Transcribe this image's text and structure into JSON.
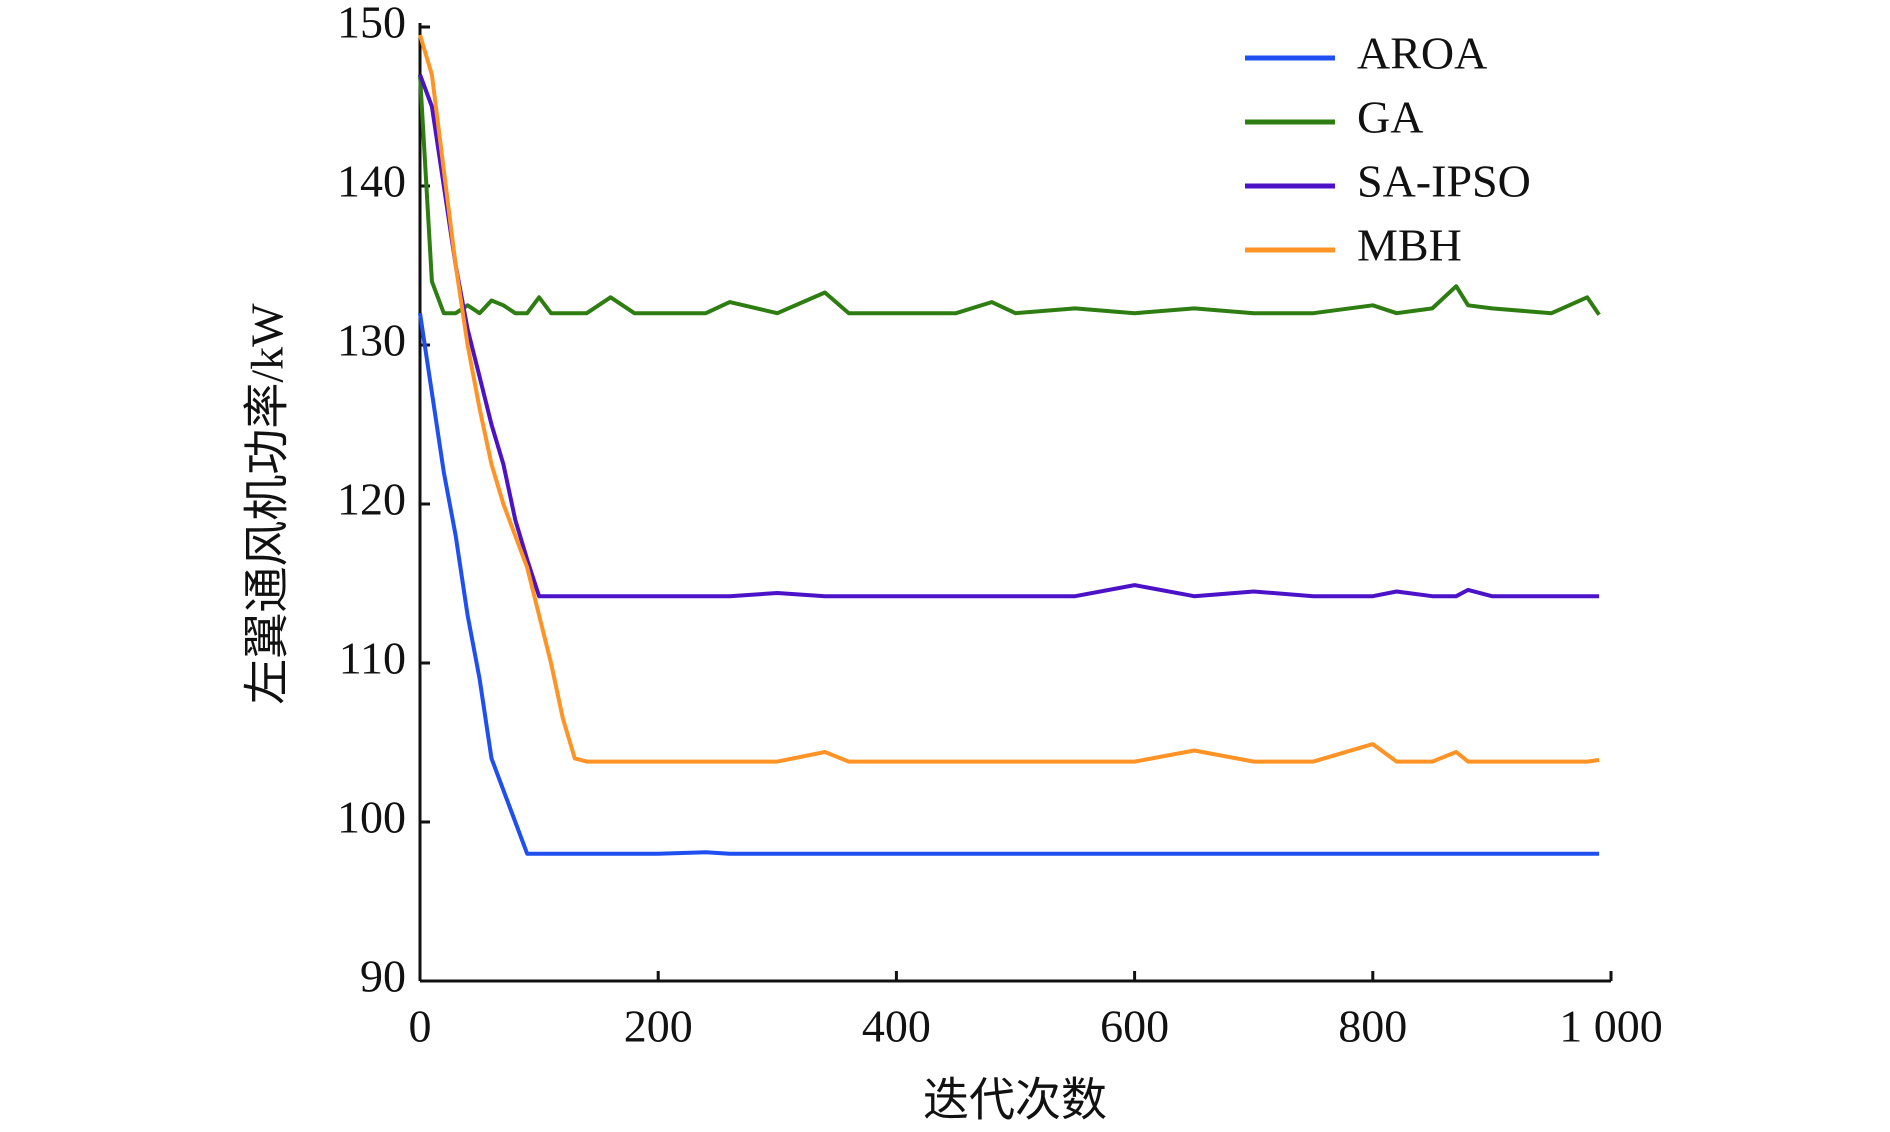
{
  "chart_data": {
    "type": "line",
    "xlabel": "迭代次数",
    "ylabel": "左翼通风机功率/kW",
    "x": [
      0,
      10,
      20,
      30,
      40,
      50,
      60,
      70,
      80,
      90,
      100,
      110,
      120,
      130,
      140,
      160,
      180,
      200,
      240,
      260,
      300,
      340,
      360,
      400,
      450,
      480,
      500,
      550,
      600,
      650,
      700,
      750,
      800,
      820,
      850,
      870,
      880,
      900,
      950,
      980,
      990
    ],
    "series": [
      {
        "name": "AROA",
        "color": "#1f4ff0",
        "values": [
          132,
          127,
          122,
          118,
          113,
          109,
          104,
          102,
          100,
          98,
          98,
          98,
          98,
          98,
          98,
          98,
          98,
          98,
          98.1,
          98,
          98,
          98,
          98,
          98,
          98,
          98,
          98,
          98,
          98,
          98,
          98,
          98,
          98,
          98,
          98,
          98,
          98,
          98,
          98,
          98,
          98
        ]
      },
      {
        "name": "GA",
        "color": "#2e7d12",
        "values": [
          147,
          134,
          132,
          132,
          132.5,
          132,
          132.8,
          132.5,
          132,
          132,
          133,
          132,
          132,
          132,
          132,
          133,
          132,
          132,
          132,
          132.7,
          132,
          133.3,
          132,
          132,
          132,
          132.7,
          132,
          132.3,
          132,
          132.3,
          132,
          132,
          132.5,
          132,
          132.3,
          133.7,
          132.5,
          132.3,
          132,
          133,
          131.9
        ]
      },
      {
        "name": "SA-IPSO",
        "color": "#4b12c8",
        "values": [
          147,
          145,
          140,
          135,
          131,
          128,
          125,
          122.5,
          119,
          116.5,
          114.2,
          114.2,
          114.2,
          114.2,
          114.2,
          114.2,
          114.2,
          114.2,
          114.2,
          114.2,
          114.4,
          114.2,
          114.2,
          114.2,
          114.2,
          114.2,
          114.2,
          114.2,
          114.9,
          114.2,
          114.5,
          114.2,
          114.2,
          114.5,
          114.2,
          114.2,
          114.6,
          114.2,
          114.2,
          114.2,
          114.2
        ]
      },
      {
        "name": "MBH",
        "color": "#ff9326",
        "values": [
          149.5,
          147,
          141,
          135,
          130,
          126,
          122.5,
          120,
          118,
          116,
          113,
          110,
          106.5,
          104,
          103.8,
          103.8,
          103.8,
          103.8,
          103.8,
          103.8,
          103.8,
          104.4,
          103.8,
          103.8,
          103.8,
          103.8,
          103.8,
          103.8,
          103.8,
          104.5,
          103.8,
          103.8,
          104.9,
          103.8,
          103.8,
          104.4,
          103.8,
          103.8,
          103.8,
          103.8,
          103.9
        ]
      }
    ],
    "xlim": [
      0,
      1000
    ],
    "ylim": [
      90,
      150
    ],
    "xticks": [
      0,
      200,
      400,
      600,
      800,
      {
        "value": 1000,
        "label": "1 000"
      }
    ],
    "yticks": [
      90,
      100,
      110,
      120,
      130,
      140,
      150
    ],
    "legend": "upper right"
  }
}
